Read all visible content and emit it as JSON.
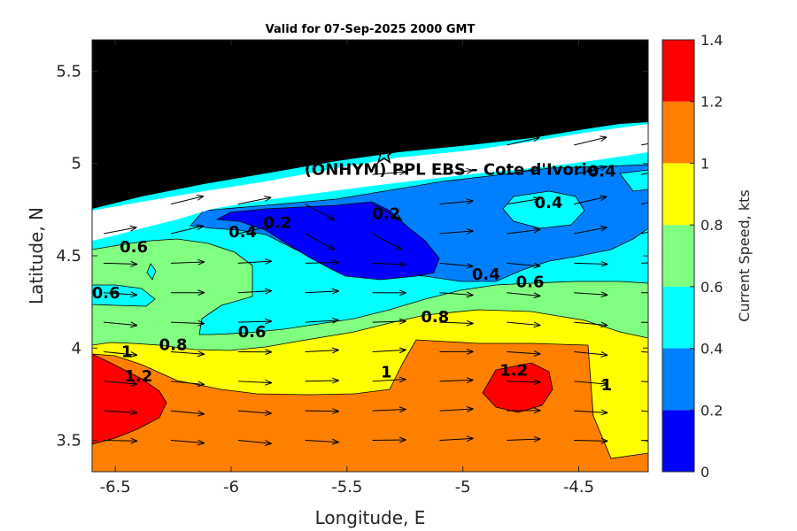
{
  "chart_data": {
    "type": "heatmap",
    "subtype": "filled-contour-with-current-vectors",
    "title": "Valid for 07-Sep-2025 2000 GMT",
    "xlabel": "Longitude, E",
    "ylabel": "Latitude, N",
    "xlim": [
      -6.6,
      -4.2
    ],
    "ylim": [
      3.33,
      5.67
    ],
    "xticks": [
      "-6.5",
      "-6",
      "-5.5",
      "-5",
      "-4.5"
    ],
    "xtick_values": [
      -6.5,
      -6,
      -5.5,
      -5,
      -4.5
    ],
    "yticks": [
      "3.5",
      "4",
      "4.5",
      "5",
      "5.5"
    ],
    "ytick_values": [
      3.5,
      4,
      4.5,
      5,
      5.5
    ],
    "colorbar": {
      "label": "Current Speed, kts",
      "ticks": [
        "0",
        "0.2",
        "0.4",
        "0.6",
        "0.8",
        "1",
        "1.2",
        "1.4"
      ],
      "tick_values": [
        0,
        0.2,
        0.4,
        0.6,
        0.8,
        1.0,
        1.2,
        1.4
      ],
      "levels": [
        {
          "min": 0.0,
          "max": 0.2,
          "color": "#0000ff"
        },
        {
          "min": 0.2,
          "max": 0.4,
          "color": "#0080ff"
        },
        {
          "min": 0.4,
          "max": 0.6,
          "color": "#00ffff"
        },
        {
          "min": 0.6,
          "max": 0.8,
          "color": "#80ff80"
        },
        {
          "min": 0.8,
          "max": 1.0,
          "color": "#ffff00"
        },
        {
          "min": 1.0,
          "max": 1.2,
          "color": "#ff8000"
        },
        {
          "min": 1.2,
          "max": 1.4,
          "color": "#ff0000"
        }
      ]
    },
    "land_color": "#000000",
    "site": {
      "label": "(ONHYM) PPL EBS  - Cote d'Ivorie",
      "lon": -5.34,
      "lat": 5.05,
      "marker": "star"
    },
    "contour_labels": [
      {
        "text": "0.4",
        "lon": -4.4,
        "lat": 4.93
      },
      {
        "text": "0.4",
        "lon": -4.63,
        "lat": 4.76
      },
      {
        "text": "0.2",
        "lon": -5.8,
        "lat": 4.65
      },
      {
        "text": "0.4",
        "lon": -5.95,
        "lat": 4.6
      },
      {
        "text": "0.2",
        "lon": -5.33,
        "lat": 4.7
      },
      {
        "text": "0.6",
        "lon": -6.42,
        "lat": 4.52
      },
      {
        "text": "0.6",
        "lon": -6.54,
        "lat": 4.27
      },
      {
        "text": "0.4",
        "lon": -4.9,
        "lat": 4.37
      },
      {
        "text": "0.6",
        "lon": -4.71,
        "lat": 4.33
      },
      {
        "text": "0.6",
        "lon": -5.91,
        "lat": 4.06
      },
      {
        "text": "0.8",
        "lon": -5.12,
        "lat": 4.14
      },
      {
        "text": "0.8",
        "lon": -6.25,
        "lat": 3.99
      },
      {
        "text": "1",
        "lon": -6.45,
        "lat": 3.95
      },
      {
        "text": "1.2",
        "lon": -6.4,
        "lat": 3.82
      },
      {
        "text": "1",
        "lon": -5.33,
        "lat": 3.84
      },
      {
        "text": "1.2",
        "lon": -4.78,
        "lat": 3.85
      },
      {
        "text": "1",
        "lon": -4.38,
        "lat": 3.77
      }
    ]
  }
}
